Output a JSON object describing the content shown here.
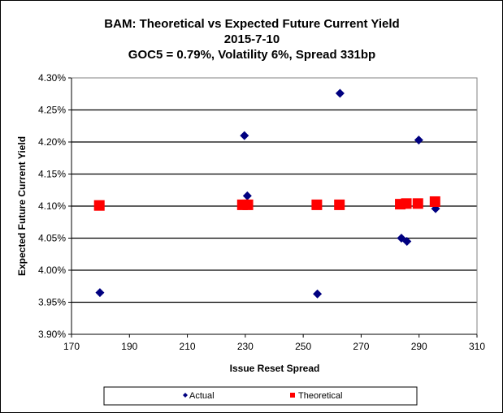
{
  "chart_data": {
    "type": "scatter",
    "title": "BAM: Theoretical vs Expected Future Current Yield",
    "subtitle_lines": [
      "2015-7-10",
      "GOC5 = 0.79%, Volatility 6%, Spread 331bp"
    ],
    "xlabel": "Issue Reset Spread",
    "ylabel": "Expected Future Current Yield",
    "xlim": [
      170,
      310
    ],
    "ylim": [
      3.9,
      4.3
    ],
    "xticks": [
      "170",
      "190",
      "210",
      "230",
      "250",
      "270",
      "290",
      "310"
    ],
    "yticks": [
      "3.90%",
      "3.95%",
      "4.00%",
      "4.05%",
      "4.10%",
      "4.15%",
      "4.20%",
      "4.25%",
      "4.30%"
    ],
    "grid": "horizontal",
    "legend_position": "bottom",
    "series": [
      {
        "name": "Actual",
        "marker": "diamond",
        "color": "#000080",
        "x": [
          179.8,
          229.7,
          230.7,
          254.9,
          262.7,
          283.9,
          285.8,
          289.9,
          295.7
        ],
        "y": [
          3.965,
          4.21,
          4.116,
          3.963,
          4.276,
          4.05,
          4.045,
          4.203,
          4.096
        ]
      },
      {
        "name": "Theoretical",
        "marker": "square",
        "color": "#FF0000",
        "x": [
          179.6,
          229.0,
          230.9,
          254.7,
          262.5,
          283.5,
          285.6,
          289.6,
          295.5
        ],
        "y": [
          4.101,
          4.102,
          4.102,
          4.102,
          4.102,
          4.103,
          4.104,
          4.104,
          4.107
        ]
      }
    ]
  }
}
